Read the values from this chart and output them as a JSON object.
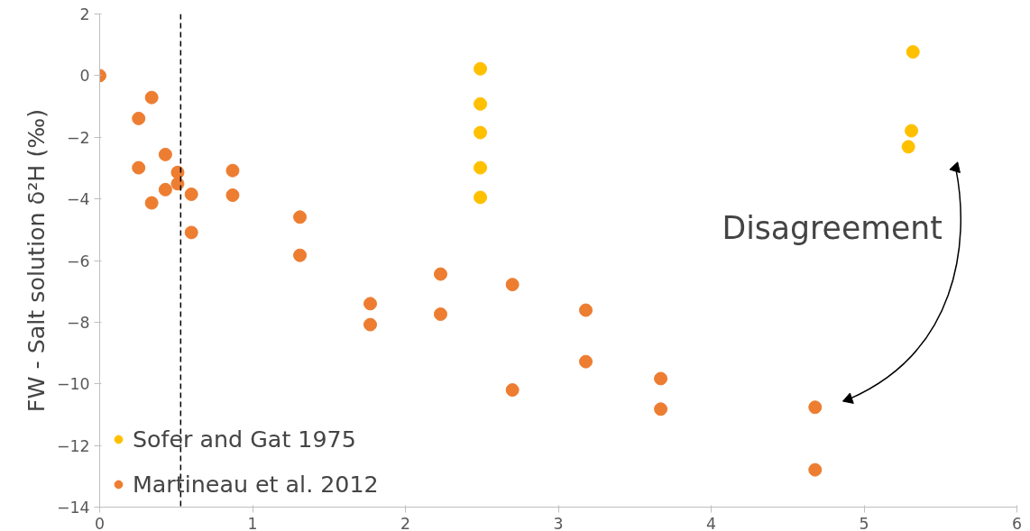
{
  "chart_data": {
    "type": "scatter",
    "ylabel": "FW - Salt solution δ²H (‰)",
    "xlim": [
      0,
      6
    ],
    "xticks": [
      0,
      1,
      2,
      3,
      4,
      5,
      6
    ],
    "ylim": [
      -14,
      2
    ],
    "yticks": [
      -14,
      -12,
      -10,
      -8,
      -6,
      -4,
      -2,
      0,
      2
    ],
    "grid": false,
    "legend": "bottom left",
    "marker": "circle",
    "series": [
      {
        "name": "Sofer and Gat 1975",
        "color": "#ffc000",
        "x": [
          2.49,
          2.49,
          2.49,
          2.49,
          2.49,
          5.32,
          5.31,
          5.29
        ],
        "values": [
          0.22,
          -0.92,
          -1.85,
          -2.99,
          -3.95,
          0.77,
          -1.79,
          -2.31
        ]
      },
      {
        "name": "Martineau et al. 2012",
        "color": "#ed7d31",
        "x": [
          0,
          0.255,
          0.34,
          0.255,
          0.34,
          0.43,
          0.43,
          0.51,
          0.51,
          0.6,
          0.6,
          0.87,
          0.87,
          1.31,
          1.31,
          1.77,
          1.77,
          2.23,
          2.23,
          2.7,
          2.7,
          3.18,
          3.18,
          3.67,
          3.67,
          4.68,
          4.68
        ],
        "values": [
          0,
          -1.39,
          -0.71,
          -2.99,
          -4.13,
          -2.56,
          -3.7,
          -3.14,
          -3.51,
          -3.85,
          -5.09,
          -3.08,
          -3.88,
          -4.59,
          -5.83,
          -7.4,
          -8.08,
          -6.44,
          -7.74,
          -6.78,
          -10.2,
          -7.61,
          -9.28,
          -9.83,
          -10.82,
          -10.76,
          -12.79
        ]
      }
    ],
    "ref_lines": [
      {
        "axis": "x",
        "value": 0.53,
        "color": "#000000",
        "line_style": "dashed"
      }
    ],
    "annotations": [
      "Disagreement"
    ]
  }
}
